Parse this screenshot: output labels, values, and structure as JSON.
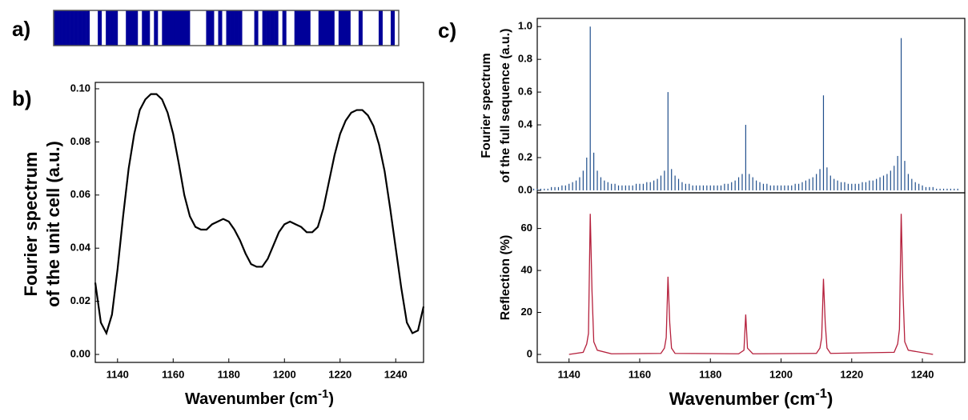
{
  "chart_data": [
    {
      "type": "barcode",
      "panel_label": "a)",
      "color": "#000099",
      "values": [
        1,
        1,
        1,
        1,
        1,
        1,
        1,
        1,
        1,
        0,
        0,
        1,
        0,
        1,
        1,
        1,
        0,
        0,
        1,
        1,
        1,
        0,
        1,
        1,
        0,
        1,
        0,
        1,
        1,
        1,
        1,
        1,
        1,
        1,
        0,
        0,
        0,
        0,
        1,
        1,
        0,
        1,
        0,
        1,
        1,
        1,
        1,
        0,
        0,
        0,
        1,
        0,
        1,
        1,
        1,
        1,
        0,
        1,
        0,
        0,
        1,
        1,
        1,
        1,
        0,
        0,
        1,
        1,
        1,
        1,
        0,
        1,
        1,
        1,
        0,
        0,
        1,
        0,
        0,
        0,
        0,
        1,
        0,
        0,
        1,
        0
      ]
    },
    {
      "type": "line",
      "panel_label": "b)",
      "color": "#000000",
      "ylabel": [
        "Fourier spectrum",
        "of the unit cell (a.u.)"
      ],
      "xlabel": [
        "Wavenumber (cm",
        "-1",
        ")"
      ],
      "x": [
        1132,
        1134,
        1136,
        1138,
        1140,
        1142,
        1144,
        1146,
        1148,
        1150,
        1152,
        1154,
        1156,
        1158,
        1160,
        1162,
        1164,
        1166,
        1168,
        1170,
        1172,
        1174,
        1176,
        1178,
        1180,
        1182,
        1184,
        1186,
        1188,
        1190,
        1192,
        1194,
        1196,
        1198,
        1200,
        1202,
        1204,
        1206,
        1208,
        1210,
        1212,
        1214,
        1216,
        1218,
        1220,
        1222,
        1224,
        1226,
        1228,
        1230,
        1232,
        1234,
        1236,
        1238,
        1240,
        1242,
        1244,
        1246,
        1248,
        1250
      ],
      "values": [
        0.027,
        0.012,
        0.008,
        0.015,
        0.032,
        0.052,
        0.07,
        0.083,
        0.092,
        0.096,
        0.098,
        0.098,
        0.096,
        0.091,
        0.083,
        0.072,
        0.06,
        0.052,
        0.048,
        0.047,
        0.047,
        0.049,
        0.05,
        0.051,
        0.05,
        0.047,
        0.043,
        0.038,
        0.034,
        0.033,
        0.033,
        0.036,
        0.041,
        0.046,
        0.049,
        0.05,
        0.049,
        0.048,
        0.046,
        0.046,
        0.048,
        0.055,
        0.065,
        0.075,
        0.083,
        0.088,
        0.091,
        0.092,
        0.092,
        0.09,
        0.086,
        0.079,
        0.069,
        0.055,
        0.04,
        0.025,
        0.012,
        0.008,
        0.009,
        0.018
      ],
      "xlim": [
        1132,
        1250
      ],
      "xticks": [
        1140,
        1160,
        1180,
        1200,
        1220,
        1240
      ],
      "ylim": [
        -0.003,
        0.1024
      ],
      "yticks": [
        {
          "value": 0,
          "label": "0.00"
        },
        0.02,
        0.04,
        0.06,
        0.08,
        {
          "value": 0.1,
          "label": "0.10"
        }
      ]
    },
    {
      "type": "stem",
      "panel_label": "c)",
      "color": "#1f4e8c",
      "ylabel": [
        "Fourier spectrum",
        "of the full sequence (a.u.)"
      ],
      "x": [
        1130,
        1131,
        1132,
        1133,
        1134,
        1135,
        1136,
        1137,
        1138,
        1139,
        1140,
        1141,
        1142,
        1143,
        1144,
        1145,
        1146,
        1147,
        1148,
        1149,
        1150,
        1151,
        1152,
        1153,
        1154,
        1155,
        1156,
        1157,
        1158,
        1159,
        1160,
        1161,
        1162,
        1163,
        1164,
        1165,
        1166,
        1167,
        1168,
        1169,
        1170,
        1171,
        1172,
        1173,
        1174,
        1175,
        1176,
        1177,
        1178,
        1179,
        1180,
        1181,
        1182,
        1183,
        1184,
        1185,
        1186,
        1187,
        1188,
        1189,
        1190,
        1191,
        1192,
        1193,
        1194,
        1195,
        1196,
        1197,
        1198,
        1199,
        1200,
        1201,
        1202,
        1203,
        1204,
        1205,
        1206,
        1207,
        1208,
        1209,
        1210,
        1211,
        1212,
        1213,
        1214,
        1215,
        1216,
        1217,
        1218,
        1219,
        1220,
        1221,
        1222,
        1223,
        1224,
        1225,
        1226,
        1227,
        1228,
        1229,
        1230,
        1231,
        1232,
        1233,
        1234,
        1235,
        1236,
        1237,
        1238,
        1239,
        1240,
        1241,
        1242,
        1243,
        1244,
        1245,
        1246,
        1247,
        1248,
        1249,
        1250
      ],
      "values": [
        0.01,
        0.01,
        0.01,
        0.01,
        0.01,
        0.02,
        0.02,
        0.02,
        0.03,
        0.03,
        0.04,
        0.05,
        0.06,
        0.08,
        0.12,
        0.2,
        1.0,
        0.23,
        0.12,
        0.08,
        0.06,
        0.05,
        0.04,
        0.04,
        0.03,
        0.03,
        0.03,
        0.03,
        0.03,
        0.04,
        0.04,
        0.04,
        0.05,
        0.05,
        0.06,
        0.07,
        0.09,
        0.12,
        0.6,
        0.13,
        0.09,
        0.07,
        0.05,
        0.04,
        0.04,
        0.03,
        0.03,
        0.03,
        0.03,
        0.03,
        0.03,
        0.03,
        0.03,
        0.03,
        0.04,
        0.04,
        0.05,
        0.06,
        0.08,
        0.1,
        0.4,
        0.1,
        0.08,
        0.06,
        0.05,
        0.04,
        0.04,
        0.03,
        0.03,
        0.03,
        0.03,
        0.03,
        0.03,
        0.03,
        0.04,
        0.04,
        0.05,
        0.06,
        0.07,
        0.08,
        0.1,
        0.13,
        0.58,
        0.14,
        0.09,
        0.07,
        0.06,
        0.05,
        0.05,
        0.04,
        0.04,
        0.04,
        0.04,
        0.05,
        0.05,
        0.06,
        0.06,
        0.07,
        0.08,
        0.09,
        0.1,
        0.12,
        0.15,
        0.21,
        0.93,
        0.18,
        0.1,
        0.07,
        0.05,
        0.04,
        0.03,
        0.02,
        0.02,
        0.02,
        0.01,
        0.01,
        0.01,
        0.01,
        0.01,
        0.01,
        0.01
      ],
      "xlim": [
        1131,
        1252
      ],
      "ylim": [
        -0.015,
        1.05
      ],
      "yticks": [
        {
          "value": 0,
          "label": "0.0"
        },
        0.2,
        0.4,
        0.6,
        0.8,
        {
          "value": 1,
          "label": "1.0"
        }
      ]
    },
    {
      "type": "line",
      "color": "#b5203c",
      "ylabel": [
        "Reflection (%)"
      ],
      "xlabel": [
        "Wavenumber (cm",
        "-1",
        ")"
      ],
      "x": [
        1140,
        1144,
        1145,
        1145.5,
        1146,
        1146.5,
        1147,
        1148,
        1152,
        1166,
        1167,
        1167.5,
        1168,
        1168.5,
        1169,
        1170,
        1188,
        1189.5,
        1190,
        1190.5,
        1192,
        1210,
        1211,
        1211.5,
        1212,
        1212.5,
        1213,
        1214,
        1232,
        1233,
        1233.5,
        1234,
        1234.5,
        1235,
        1236,
        1243
      ],
      "values": [
        0,
        1,
        5,
        10,
        67,
        30,
        6,
        2,
        0.3,
        0.5,
        3,
        8,
        37,
        15,
        3,
        0.5,
        0.3,
        2,
        19,
        3,
        0.3,
        0.5,
        3,
        8,
        36,
        15,
        3,
        0.5,
        1,
        5,
        12,
        67,
        30,
        6,
        2,
        0
      ],
      "xlim": [
        1131,
        1252
      ],
      "xticks": [
        1140,
        1160,
        1180,
        1200,
        1220,
        1240
      ],
      "ylim": [
        -3.8,
        77
      ],
      "yticks": [
        0,
        20,
        40,
        60
      ]
    }
  ]
}
